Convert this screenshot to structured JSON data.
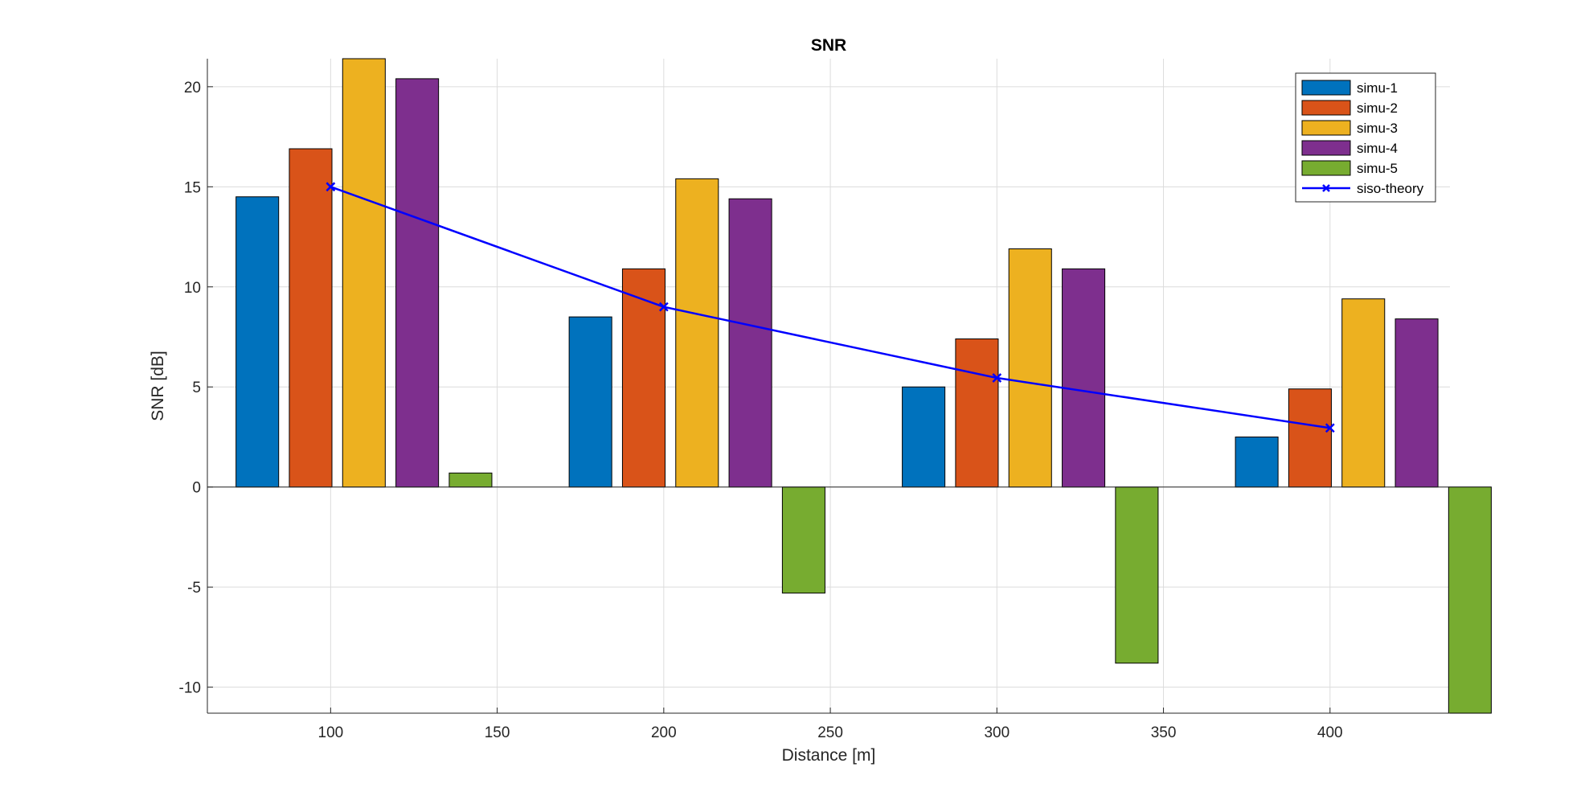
{
  "chart_data": {
    "type": "bar",
    "title": "SNR",
    "xlabel": "Distance [m]",
    "ylabel": "SNR [dB]",
    "xlim": [
      63,
      436
    ],
    "ylim": [
      -11.3,
      21.4
    ],
    "x": [
      100,
      200,
      300,
      400
    ],
    "xticks": [
      100,
      150,
      200,
      250,
      300,
      350,
      400
    ],
    "yticks": [
      -10,
      -5,
      0,
      5,
      10,
      15,
      20
    ],
    "grid": true,
    "legend_position": "top-right",
    "series": [
      {
        "name": "simu-1",
        "kind": "bar",
        "color": "#0072BD",
        "values": [
          14.5,
          8.5,
          5.0,
          2.5
        ]
      },
      {
        "name": "simu-2",
        "kind": "bar",
        "color": "#D95319",
        "values": [
          16.9,
          10.9,
          7.4,
          4.9
        ]
      },
      {
        "name": "simu-3",
        "kind": "bar",
        "color": "#EDB120",
        "values": [
          21.4,
          15.4,
          11.9,
          9.4
        ]
      },
      {
        "name": "simu-4",
        "kind": "bar",
        "color": "#7E2F8E",
        "values": [
          20.4,
          14.4,
          10.9,
          8.4
        ]
      },
      {
        "name": "simu-5",
        "kind": "bar",
        "color": "#77AC30",
        "values": [
          0.7,
          -5.3,
          -8.8,
          -11.3
        ]
      },
      {
        "name": "siso-theory",
        "kind": "line",
        "marker": "x",
        "color": "#0000FF",
        "values": [
          15.0,
          9.0,
          5.45,
          2.95
        ]
      }
    ]
  }
}
